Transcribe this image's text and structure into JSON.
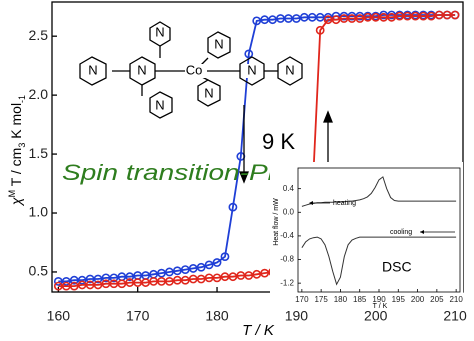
{
  "chart_data": [
    {
      "type": "line",
      "x_label": "T / K",
      "y_label_parts": [
        "χ",
        "M",
        " T / cm",
        "3",
        " K mol",
        "-1"
      ],
      "annotations": [
        "9 K",
        "Spin transition-Phase transition"
      ],
      "x": [
        160,
        161,
        162,
        163,
        164,
        165,
        166,
        167,
        168,
        169,
        170,
        171,
        172,
        173,
        174,
        175,
        176,
        177,
        178,
        179,
        180,
        181,
        182,
        183,
        184,
        185,
        186,
        187,
        188,
        189,
        190,
        191,
        192,
        193,
        194,
        195,
        196,
        197,
        198,
        199,
        200,
        201,
        202,
        203,
        204,
        205,
        206,
        207,
        208,
        209,
        210
      ],
      "series": [
        {
          "color": "#1f3fd6",
          "values": [
            0.42,
            0.42,
            0.43,
            0.43,
            0.44,
            0.44,
            0.45,
            0.45,
            0.46,
            0.46,
            0.47,
            0.47,
            0.48,
            0.49,
            0.5,
            0.51,
            0.52,
            0.53,
            0.54,
            0.56,
            0.58,
            0.63,
            1.05,
            1.48,
            2.35,
            2.63,
            2.64,
            2.64,
            2.65,
            2.65,
            2.65,
            2.66,
            2.66,
            2.66,
            2.66,
            2.67,
            2.67,
            2.67,
            2.67,
            2.67,
            2.67,
            2.68,
            2.68,
            2.68,
            2.68,
            2.68,
            2.68,
            2.68,
            2.68,
            2.68,
            2.68
          ]
        },
        {
          "color": "#e0261c",
          "values": [
            0.38,
            0.38,
            0.38,
            0.39,
            0.39,
            0.39,
            0.4,
            0.4,
            0.4,
            0.41,
            0.41,
            0.41,
            0.42,
            0.42,
            0.42,
            0.43,
            0.43,
            0.44,
            0.44,
            0.45,
            0.45,
            0.46,
            0.46,
            0.47,
            0.47,
            0.48,
            0.49,
            0.5,
            0.51,
            0.53,
            0.56,
            0.62,
            1.12,
            2.55,
            2.64,
            2.64,
            2.65,
            2.65,
            2.65,
            2.66,
            2.66,
            2.66,
            2.66,
            2.67,
            2.67,
            2.67,
            2.67,
            2.67,
            2.68,
            2.68,
            2.68
          ]
        }
      ],
      "xlim": [
        159.2,
        211
      ],
      "xticks": [
        160,
        170,
        180,
        190,
        200,
        210
      ],
      "ylim": [
        0.33,
        2.79
      ],
      "yticks": [
        0.5,
        {
          "value": 1,
          "label": "1.0"
        },
        1.5,
        {
          "value": 2,
          "label": "2.0"
        },
        2.5
      ]
    },
    {
      "type": "line",
      "title": "DSC",
      "x_label": "T / K",
      "y_label": "Heat flow / mW",
      "x": [
        170,
        171,
        172,
        173,
        174,
        175,
        176,
        177,
        178,
        179,
        180,
        181,
        182,
        183,
        184,
        185,
        186,
        187,
        188,
        189,
        190,
        191,
        192,
        193,
        194,
        195,
        196,
        197,
        198,
        199,
        200,
        201,
        202,
        203,
        204,
        205,
        206,
        207,
        208,
        209,
        210
      ],
      "series": [
        {
          "name": "heating",
          "color": "#333333",
          "values": [
            0.1,
            0.12,
            0.14,
            0.15,
            0.16,
            0.16,
            0.17,
            0.17,
            0.17,
            0.18,
            0.18,
            0.18,
            0.19,
            0.19,
            0.2,
            0.21,
            0.23,
            0.26,
            0.32,
            0.42,
            0.55,
            0.6,
            0.4,
            0.25,
            0.2,
            0.19,
            0.19,
            0.19,
            0.19,
            0.19,
            0.19,
            0.19,
            0.19,
            0.19,
            0.19,
            0.19,
            0.19,
            0.19,
            0.19,
            0.19,
            0.19
          ]
        },
        {
          "name": "cooling",
          "color": "#333333",
          "values": [
            -0.6,
            -0.5,
            -0.45,
            -0.43,
            -0.42,
            -0.45,
            -0.55,
            -0.75,
            -1.0,
            -1.22,
            -1.1,
            -0.75,
            -0.55,
            -0.47,
            -0.44,
            -0.42,
            -0.42,
            -0.42,
            -0.42,
            -0.42,
            -0.42,
            -0.42,
            -0.42,
            -0.42,
            -0.42,
            -0.42,
            -0.42,
            -0.42,
            -0.42,
            -0.42,
            -0.42,
            -0.42,
            -0.42,
            -0.42,
            -0.42,
            -0.42,
            -0.42,
            -0.42,
            -0.42,
            -0.42,
            -0.42
          ]
        }
      ],
      "xlim": [
        169,
        211
      ],
      "xticks": [
        170,
        175,
        180,
        185,
        190,
        195,
        200,
        205,
        210
      ],
      "ylim": [
        -1.35,
        0.75
      ],
      "yticks": [
        0.4,
        {
          "value": 0,
          "label": "0.0"
        },
        -0.4,
        -0.8,
        -1.2
      ]
    }
  ],
  "molecule": {
    "atoms": [
      "N",
      "N",
      "N",
      "N",
      "Co",
      "N",
      "N",
      "N",
      "N"
    ]
  }
}
